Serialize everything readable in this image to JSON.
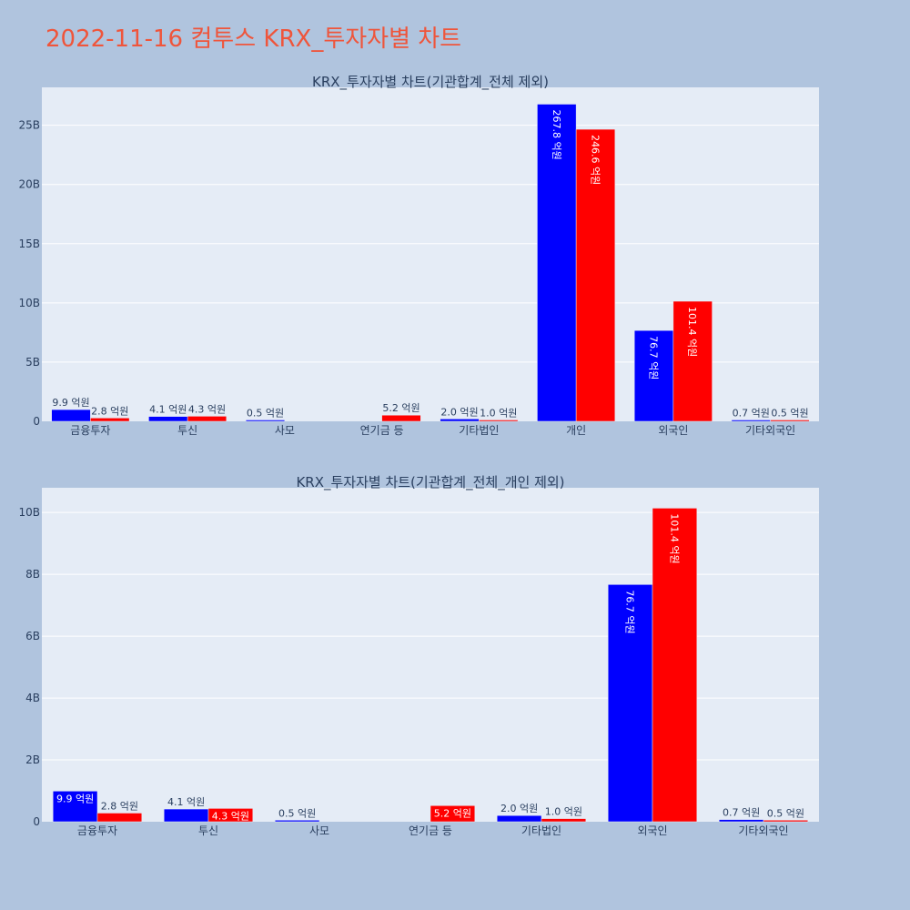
{
  "title": "2022-11-16 컴투스 KRX_투자자별 차트",
  "colors": {
    "buy": "#0000ff",
    "sell": "#ff0000",
    "plot_bg": "#e5ecf6",
    "page_bg": "#b0c4de",
    "title": "#ef553b"
  },
  "chart_data": [
    {
      "type": "bar",
      "title": "KRX_투자자별 차트(기관합계_전체 제외)",
      "categories": [
        "금융투자",
        "투신",
        "사모",
        "연기금 등",
        "기타법인",
        "개인",
        "외국인",
        "기타외국인"
      ],
      "series": [
        {
          "values": [
            990000000.0,
            410000000.0,
            50000000.0,
            0,
            200000000.0,
            26780000000.0,
            7670000000.0,
            70000000.0
          ],
          "labels": [
            "9.9 억원",
            "4.1 억원",
            "0.5 억원",
            "",
            "2.0 억원",
            "267.8 억원",
            "76.7 억원",
            "0.7 억원"
          ]
        },
        {
          "values": [
            280000000.0,
            430000000.0,
            0,
            520000000.0,
            100000000.0,
            24660000000.0,
            10140000000.0,
            50000000.0
          ],
          "labels": [
            "2.8 억원",
            "4.3 억원",
            "",
            "5.2 억원",
            "1.0 억원",
            "246.6 억원",
            "101.4 억원",
            "0.5 억원"
          ]
        }
      ],
      "yticks": [
        0,
        5000000000.0,
        10000000000.0,
        15000000000.0,
        20000000000.0,
        25000000000.0
      ],
      "ytick_labels": [
        "0",
        "5B",
        "10B",
        "15B",
        "20B",
        "25B"
      ],
      "ylim": [
        0,
        28200000000.0
      ]
    },
    {
      "type": "bar",
      "title": "KRX_투자자별 차트(기관합계_전체_개인 제외)",
      "categories": [
        "금융투자",
        "투신",
        "사모",
        "연기금 등",
        "기타법인",
        "외국인",
        "기타외국인"
      ],
      "series": [
        {
          "values": [
            990000000.0,
            410000000.0,
            50000000.0,
            0,
            200000000.0,
            7670000000.0,
            70000000.0
          ],
          "labels": [
            "9.9 억원",
            "4.1 억원",
            "0.5 억원",
            "",
            "2.0 억원",
            "76.7 억원",
            "0.7 억원"
          ]
        },
        {
          "values": [
            280000000.0,
            430000000.0,
            0,
            520000000.0,
            100000000.0,
            10140000000.0,
            50000000.0
          ],
          "labels": [
            "2.8 억원",
            "4.3 억원",
            "",
            "5.2 억원",
            "1.0 억원",
            "101.4 억원",
            "0.5 억원"
          ]
        }
      ],
      "yticks": [
        0,
        2000000000.0,
        4000000000.0,
        6000000000.0,
        8000000000.0,
        10000000000.0
      ],
      "ytick_labels": [
        "0",
        "2B",
        "4B",
        "6B",
        "8B",
        "10B"
      ],
      "ylim": [
        0,
        10800000000.0
      ]
    }
  ]
}
